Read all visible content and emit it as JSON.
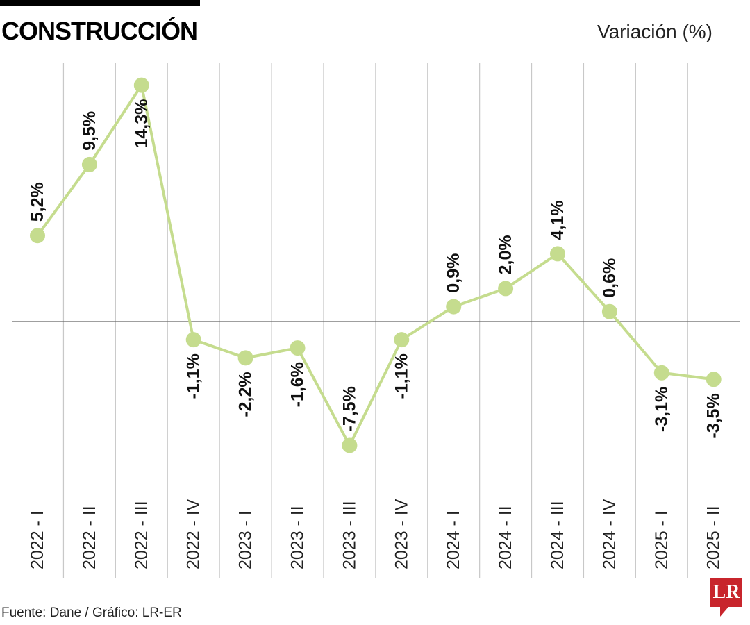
{
  "title": "CONSTRUCCIÓN",
  "unit_label": "Variación (%)",
  "source": "Fuente: Dane / Gráfico: LR-ER",
  "logo": "LR",
  "chart_data": {
    "type": "line",
    "title": "CONSTRUCCIÓN",
    "ylabel": "Variación (%)",
    "categories": [
      "2022 - I",
      "2022 - II",
      "2022 - III",
      "2022 - IV",
      "2023 - I",
      "2023 - II",
      "2023 - III",
      "2023 - IV",
      "2024 - I",
      "2024 - II",
      "2024 - III",
      "2024 - IV",
      "2025 - I",
      "2025 - II"
    ],
    "values": [
      5.2,
      9.5,
      14.3,
      -1.1,
      -2.2,
      -1.6,
      -7.5,
      -1.1,
      0.9,
      2.0,
      4.1,
      0.6,
      -3.1,
      -3.5
    ],
    "labels": [
      "5,2%",
      "9,5%",
      "14,3%",
      "-1,1%",
      "-2,2%",
      "-1,6%",
      "-7,5%",
      "-1,1%",
      "0,9%",
      "2,0%",
      "4,1%",
      "0,6%",
      "-3,1%",
      "-3,5%"
    ],
    "color": "#c5dc8e",
    "grid": true
  }
}
